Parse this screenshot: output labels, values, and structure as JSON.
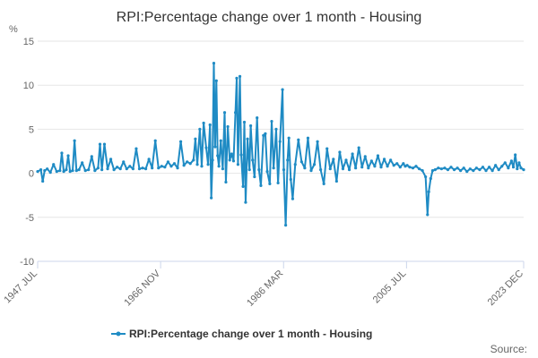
{
  "chart_data": {
    "type": "line",
    "title": "RPI:Percentage change over 1 month - Housing",
    "yunit": "%",
    "ylabel": "",
    "xlabel": "",
    "ylim": [
      -10,
      15
    ],
    "yticks": [
      15,
      10,
      5,
      0,
      -5,
      -10
    ],
    "xlim": [
      1947.5,
      2023.917
    ],
    "xticks": [
      {
        "x": 1947.5,
        "label": "1947 JUL"
      },
      {
        "x": 1966.833,
        "label": "1966 NOV"
      },
      {
        "x": 1986.167,
        "label": "1986 MAR"
      },
      {
        "x": 2005.5,
        "label": "2005 JUL"
      },
      {
        "x": 2023.917,
        "label": "2023 DEC"
      }
    ],
    "grid": true,
    "legend_position": "bottom",
    "series": [
      {
        "name": "RPI:Percentage change over 1 month - Housing",
        "color": "#1f8bc4",
        "points": [
          [
            1947.5,
            0.2
          ],
          [
            1948.0,
            0.4
          ],
          [
            1948.3,
            -0.9
          ],
          [
            1948.6,
            0.3
          ],
          [
            1949.0,
            0.5
          ],
          [
            1949.5,
            0.1
          ],
          [
            1950.0,
            1.0
          ],
          [
            1950.5,
            0.2
          ],
          [
            1951.0,
            0.3
          ],
          [
            1951.3,
            2.3
          ],
          [
            1951.6,
            0.2
          ],
          [
            1952.0,
            0.4
          ],
          [
            1952.3,
            2.0
          ],
          [
            1952.6,
            0.2
          ],
          [
            1953.0,
            0.3
          ],
          [
            1953.3,
            3.7
          ],
          [
            1953.6,
            0.3
          ],
          [
            1954.0,
            0.4
          ],
          [
            1954.5,
            1.2
          ],
          [
            1955.0,
            0.3
          ],
          [
            1955.5,
            0.4
          ],
          [
            1956.0,
            1.9
          ],
          [
            1956.5,
            0.3
          ],
          [
            1957.0,
            0.6
          ],
          [
            1957.3,
            3.3
          ],
          [
            1957.6,
            0.4
          ],
          [
            1958.0,
            3.3
          ],
          [
            1958.5,
            0.5
          ],
          [
            1959.0,
            1.6
          ],
          [
            1959.5,
            0.4
          ],
          [
            1960.0,
            0.7
          ],
          [
            1960.5,
            0.5
          ],
          [
            1961.0,
            1.3
          ],
          [
            1961.5,
            0.5
          ],
          [
            1962.0,
            0.8
          ],
          [
            1962.5,
            0.5
          ],
          [
            1963.0,
            2.8
          ],
          [
            1963.5,
            0.5
          ],
          [
            1964.0,
            0.6
          ],
          [
            1964.5,
            0.5
          ],
          [
            1965.0,
            1.6
          ],
          [
            1965.5,
            0.6
          ],
          [
            1966.0,
            3.7
          ],
          [
            1966.5,
            0.6
          ],
          [
            1967.0,
            0.8
          ],
          [
            1967.5,
            0.7
          ],
          [
            1968.0,
            1.3
          ],
          [
            1968.5,
            0.8
          ],
          [
            1969.0,
            1.1
          ],
          [
            1969.5,
            0.6
          ],
          [
            1970.0,
            3.6
          ],
          [
            1970.5,
            0.9
          ],
          [
            1971.0,
            1.3
          ],
          [
            1971.5,
            1.1
          ],
          [
            1972.0,
            1.5
          ],
          [
            1972.3,
            3.9
          ],
          [
            1972.6,
            1.0
          ],
          [
            1973.0,
            5.0
          ],
          [
            1973.3,
            0.8
          ],
          [
            1973.6,
            5.7
          ],
          [
            1974.0,
            2.9
          ],
          [
            1974.3,
            1.0
          ],
          [
            1974.6,
            5.5
          ],
          [
            1974.8,
            -2.8
          ],
          [
            1975.0,
            1.5
          ],
          [
            1975.2,
            12.5
          ],
          [
            1975.4,
            3.0
          ],
          [
            1975.6,
            10.5
          ],
          [
            1975.8,
            2.0
          ],
          [
            1976.0,
            0.8
          ],
          [
            1976.3,
            3.7
          ],
          [
            1976.6,
            0.5
          ],
          [
            1976.9,
            6.9
          ],
          [
            1977.1,
            -1.0
          ],
          [
            1977.4,
            5.3
          ],
          [
            1977.7,
            1.5
          ],
          [
            1978.0,
            2.2
          ],
          [
            1978.3,
            1.4
          ],
          [
            1978.6,
            6.9
          ],
          [
            1978.8,
            10.8
          ],
          [
            1979.0,
            1.0
          ],
          [
            1979.3,
            11.0
          ],
          [
            1979.5,
            2.1
          ],
          [
            1979.8,
            -1.5
          ],
          [
            1980.0,
            5.8
          ],
          [
            1980.2,
            -3.3
          ],
          [
            1980.5,
            3.9
          ],
          [
            1980.8,
            0.4
          ],
          [
            1981.0,
            5.4
          ],
          [
            1981.3,
            1.5
          ],
          [
            1981.6,
            -0.4
          ],
          [
            1982.0,
            6.3
          ],
          [
            1982.3,
            0.4
          ],
          [
            1982.6,
            -1.4
          ],
          [
            1983.0,
            4.3
          ],
          [
            1983.3,
            4.5
          ],
          [
            1983.6,
            0.2
          ],
          [
            1984.0,
            -1.2
          ],
          [
            1984.3,
            5.9
          ],
          [
            1984.6,
            0.6
          ],
          [
            1985.0,
            5.0
          ],
          [
            1985.3,
            -1.1
          ],
          [
            1985.6,
            3.6
          ],
          [
            1986.0,
            9.5
          ],
          [
            1986.2,
            0.4
          ],
          [
            1986.5,
            -5.9
          ],
          [
            1986.8,
            1.5
          ],
          [
            1987.0,
            4.0
          ],
          [
            1987.3,
            -0.7
          ],
          [
            1987.6,
            -2.9
          ],
          [
            1988.0,
            1.0
          ],
          [
            1988.5,
            3.8
          ],
          [
            1989.0,
            1.3
          ],
          [
            1989.5,
            0.6
          ],
          [
            1990.0,
            4.0
          ],
          [
            1990.5,
            0.3
          ],
          [
            1991.0,
            1.0
          ],
          [
            1991.5,
            3.6
          ],
          [
            1992.0,
            0.4
          ],
          [
            1992.5,
            -1.2
          ],
          [
            1993.0,
            2.8
          ],
          [
            1993.5,
            0.5
          ],
          [
            1994.0,
            1.6
          ],
          [
            1994.5,
            -0.9
          ],
          [
            1995.0,
            2.4
          ],
          [
            1995.5,
            0.5
          ],
          [
            1996.0,
            1.5
          ],
          [
            1996.5,
            0.4
          ],
          [
            1997.0,
            2.2
          ],
          [
            1997.5,
            0.6
          ],
          [
            1998.0,
            2.9
          ],
          [
            1998.5,
            0.7
          ],
          [
            1999.0,
            1.9
          ],
          [
            1999.5,
            0.6
          ],
          [
            2000.0,
            1.4
          ],
          [
            2000.5,
            0.8
          ],
          [
            2001.0,
            2.0
          ],
          [
            2001.5,
            0.7
          ],
          [
            2002.0,
            1.6
          ],
          [
            2002.5,
            0.8
          ],
          [
            2003.0,
            1.5
          ],
          [
            2003.5,
            0.9
          ],
          [
            2004.0,
            1.1
          ],
          [
            2004.5,
            0.7
          ],
          [
            2005.0,
            1.1
          ],
          [
            2005.3,
            0.8
          ],
          [
            2005.6,
            0.9
          ],
          [
            2006.0,
            0.7
          ],
          [
            2006.5,
            0.6
          ],
          [
            2007.0,
            0.8
          ],
          [
            2007.5,
            0.5
          ],
          [
            2008.0,
            0.3
          ],
          [
            2008.5,
            -0.4
          ],
          [
            2008.8,
            -4.7
          ],
          [
            2009.0,
            -2.1
          ],
          [
            2009.3,
            -0.6
          ],
          [
            2009.6,
            0.3
          ],
          [
            2010.0,
            0.4
          ],
          [
            2010.5,
            0.6
          ],
          [
            2011.0,
            0.5
          ],
          [
            2011.5,
            0.6
          ],
          [
            2012.0,
            0.4
          ],
          [
            2012.5,
            0.7
          ],
          [
            2013.0,
            0.4
          ],
          [
            2013.5,
            0.6
          ],
          [
            2014.0,
            0.3
          ],
          [
            2014.5,
            0.6
          ],
          [
            2015.0,
            0.2
          ],
          [
            2015.5,
            0.5
          ],
          [
            2016.0,
            0.3
          ],
          [
            2016.5,
            0.6
          ],
          [
            2017.0,
            0.4
          ],
          [
            2017.5,
            0.7
          ],
          [
            2018.0,
            0.3
          ],
          [
            2018.5,
            0.7
          ],
          [
            2019.0,
            0.3
          ],
          [
            2019.5,
            0.9
          ],
          [
            2020.0,
            0.4
          ],
          [
            2020.5,
            0.8
          ],
          [
            2021.0,
            1.2
          ],
          [
            2021.5,
            0.6
          ],
          [
            2022.0,
            1.4
          ],
          [
            2022.3,
            0.7
          ],
          [
            2022.6,
            2.1
          ],
          [
            2022.9,
            0.5
          ],
          [
            2023.2,
            1.2
          ],
          [
            2023.5,
            0.6
          ],
          [
            2023.917,
            0.4
          ]
        ]
      }
    ]
  },
  "credit": "Source:"
}
